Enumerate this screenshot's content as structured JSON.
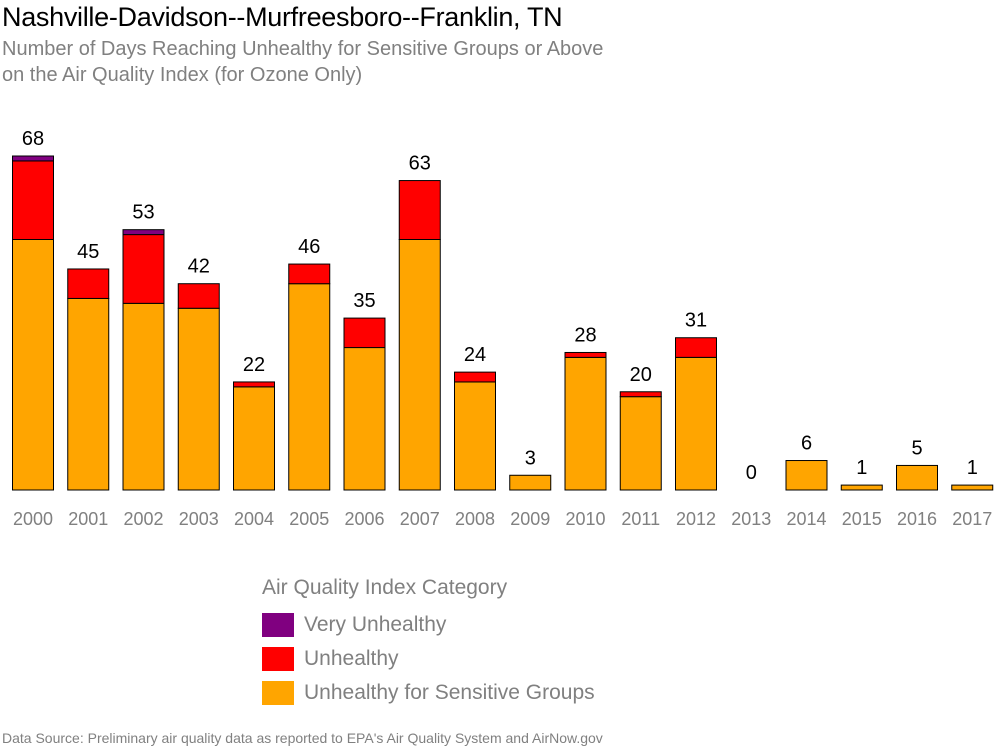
{
  "chart_data": {
    "type": "bar",
    "stacked": true,
    "title": "Nashville-Davidson--Murfreesboro--Franklin, TN",
    "subtitle_lines": [
      "Number of Days Reaching Unhealthy for Sensitive Groups or Above",
      "on the Air Quality Index (for Ozone Only)"
    ],
    "categories": [
      "2000",
      "2001",
      "2002",
      "2003",
      "2004",
      "2005",
      "2006",
      "2007",
      "2008",
      "2009",
      "2010",
      "2011",
      "2012",
      "2013",
      "2014",
      "2015",
      "2016",
      "2017"
    ],
    "series": [
      {
        "name": "Unhealthy for Sensitive Groups",
        "color": "#FFA500",
        "values": [
          51,
          39,
          38,
          37,
          21,
          42,
          29,
          51,
          22,
          3,
          27,
          19,
          27,
          0,
          6,
          1,
          5,
          1
        ]
      },
      {
        "name": "Unhealthy",
        "color": "#FF0000",
        "values": [
          16,
          6,
          14,
          5,
          1,
          4,
          6,
          12,
          2,
          0,
          1,
          1,
          4,
          0,
          0,
          0,
          0,
          0
        ]
      },
      {
        "name": "Very Unhealthy",
        "color": "#800080",
        "values": [
          1,
          0,
          1,
          0,
          0,
          0,
          0,
          0,
          0,
          0,
          0,
          0,
          0,
          0,
          0,
          0,
          0,
          0
        ]
      }
    ],
    "totals": [
      68,
      45,
      53,
      42,
      22,
      46,
      35,
      63,
      24,
      3,
      28,
      20,
      31,
      0,
      6,
      1,
      5,
      1
    ],
    "ylim": [
      0,
      68
    ],
    "grid": false,
    "legend_position": "bottom",
    "legend_title": "Air Quality Index Category",
    "legend_order": [
      "Very Unhealthy",
      "Unhealthy",
      "Unhealthy for Sensitive Groups"
    ]
  },
  "footer": {
    "source": "Data Source: Preliminary air quality data as reported to EPA's Air Quality System and AirNow.gov"
  },
  "colors": {
    "bar_outline": "#000000",
    "tick_label": "#808080",
    "value_label": "#000000"
  }
}
